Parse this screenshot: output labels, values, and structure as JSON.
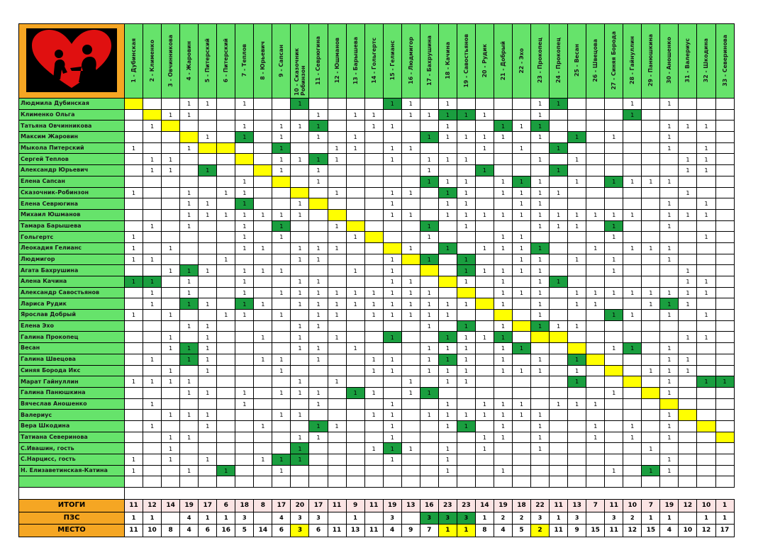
{
  "colors": {
    "green": "#66e36b",
    "dark_green": "#1a9e3f",
    "yellow": "#ffff00",
    "orange": "#f5a623",
    "pink": "#fbe4e4"
  },
  "logo_icon": "heart-silhouette-icon",
  "columns": [
    "1 - Дубинская",
    "2 - Клименко",
    "3 - Овчинникова",
    "4 - Жаровин",
    "5 - Питерский",
    "6 - Питерский",
    "7 - Теплов",
    "8 - Юрьевич",
    "9 - Сапсан",
    "10 - Сказочник Робинзон",
    "11 - Севрюгина",
    "12 - Юшманов",
    "13 - Барышева",
    "14 - Гольгертс",
    "15 - Гелианс",
    "16 - Людмигор",
    "17 - Бахрушина",
    "18 - Качина",
    "19 - Савостьянов",
    "20 - Рудик",
    "21 - Добрый",
    "22 - Эхо",
    "23 - Прокопец",
    "24 - Прокопец",
    "25 - Весан",
    "26 - Швецова",
    "27 - Синяя Борода",
    "28 - Гайнуллин",
    "29 - Панюшкина",
    "30 - Аношенко",
    "31 - Валериус",
    "32 - Шкодина",
    "33 - Северинова"
  ],
  "rows": [
    {
      "name": "Людмила Дубинская",
      "cells": "D...11..1....M......1...1.1..M...1.......1...1...1...1..............................",
      "green": [
        9,
        15,
        24
      ],
      "diag": 0
    },
    {
      "name": "Клименко Ольга"
    },
    {
      "name": "Татьяна Овчинникова"
    },
    {
      "name": "Максим Жаровин"
    },
    {
      "name": "Мыкола Питерский"
    },
    {
      "name": "Сергей Теплов"
    },
    {
      "name": "Александр Юрьевич"
    },
    {
      "name": "Елена Сапсан"
    },
    {
      "name": "Сказочник-Робинзон"
    },
    {
      "name": "Елена Севрюгина"
    },
    {
      "name": "Михаил Юшманов"
    },
    {
      "name": "Тамара Барышева"
    },
    {
      "name": "Гольгертс"
    },
    {
      "name": "Леокадия Гелианс"
    },
    {
      "name": "Людмигор"
    },
    {
      "name": "Агата Бахрушина"
    },
    {
      "name": "Алена Качина"
    },
    {
      "name": "Александр Савостьянов"
    },
    {
      "name": "Лариса Рудик"
    },
    {
      "name": "Ярослав Добрый"
    },
    {
      "name": "Елена Эхо"
    },
    {
      "name": "Галина Прокопец"
    },
    {
      "name": "Весан"
    },
    {
      "name": "Галина Швецова"
    },
    {
      "name": "Синяя Борода Икс"
    },
    {
      "name": "Марат Гайнуллин"
    },
    {
      "name": "Галина Панюшкина"
    },
    {
      "name": "Вячеслав Аношенко"
    },
    {
      "name": "Валериус"
    },
    {
      "name": "Вера Шкодина"
    },
    {
      "name": "Татиана Северинова"
    },
    {
      "name": "С.Ивашин, гость"
    },
    {
      "name": "С.Нарцисс, гость"
    },
    {
      "name": "Н. Елизаветинская-Катина"
    }
  ],
  "grid": [
    [
      "Y",
      "",
      "",
      "1",
      "1",
      "",
      "1",
      "",
      "",
      "G",
      "",
      "",
      "",
      "",
      "G",
      "1",
      "",
      "1",
      "",
      "",
      "",
      "",
      "1",
      "G",
      "",
      "",
      "",
      "1",
      "",
      "1",
      "",
      "",
      ""
    ],
    [
      "",
      "Y",
      "1",
      "1",
      "",
      "",
      "",
      "",
      "",
      "",
      "1",
      "",
      "1",
      "1",
      "",
      "1",
      "1",
      "G",
      "G",
      "1",
      "",
      "",
      "1",
      "",
      "",
      "",
      "",
      "G",
      "",
      "",
      "",
      "",
      ""
    ],
    [
      "",
      "1",
      "Y",
      "",
      "",
      "",
      "1",
      "",
      "1",
      "1",
      "G",
      "",
      "",
      "1",
      "1",
      "",
      "",
      "1",
      "",
      "",
      "G",
      "1",
      "G",
      "",
      "",
      "",
      "",
      "",
      "",
      "1",
      "1",
      "1",
      ""
    ],
    [
      "",
      "",
      "",
      "Y",
      "1",
      "",
      "G",
      "",
      "1",
      "",
      "1",
      "",
      "1",
      "",
      "",
      "",
      "G",
      "1",
      "1",
      "1",
      "1",
      "",
      "1",
      "",
      "G",
      "",
      "1",
      "",
      "",
      "1",
      "",
      "",
      ""
    ],
    [
      "1",
      "",
      "",
      "1",
      "Y",
      "Y",
      "",
      "",
      "G",
      "",
      "",
      "1",
      "1",
      "",
      "1",
      "1",
      "",
      "",
      "",
      "1",
      "",
      "1",
      "",
      "G",
      "",
      "",
      "",
      "",
      "",
      "1",
      "",
      "1",
      ""
    ],
    [
      "",
      "1",
      "1",
      "",
      "",
      "",
      "Y",
      "",
      "1",
      "1",
      "G",
      "1",
      "",
      "",
      "1",
      "",
      "1",
      "1",
      "1",
      "",
      "",
      "",
      "1",
      "",
      "1",
      "",
      "",
      "",
      "",
      "",
      "1",
      "1",
      ""
    ],
    [
      "",
      "1",
      "1",
      "",
      "G",
      "",
      "",
      "Y",
      "1",
      "",
      "1",
      "",
      "",
      "",
      "",
      "",
      "1",
      "",
      "",
      "G",
      "",
      "",
      "",
      "G",
      "",
      "",
      "",
      "",
      "",
      "",
      "1",
      "1",
      ""
    ],
    [
      "",
      "",
      "",
      "",
      "",
      "",
      "1",
      "",
      "Y",
      "",
      "1",
      "",
      "",
      "",
      "",
      "",
      "G",
      "1",
      "1",
      "",
      "1",
      "G",
      "1",
      "",
      "1",
      "",
      "G",
      "1",
      "1",
      "1",
      "",
      "",
      ""
    ],
    [
      "1",
      "",
      "",
      "1",
      "",
      "1",
      "1",
      "",
      "",
      "Y",
      "",
      "1",
      "",
      "",
      "1",
      "1",
      "",
      "G",
      "1",
      "",
      "1",
      "1",
      "1",
      "1",
      "",
      "",
      "",
      "",
      "",
      "",
      "1",
      "",
      ""
    ],
    [
      "",
      "",
      "",
      "1",
      "1",
      "",
      "G",
      "",
      "",
      "1",
      "Y",
      "",
      "",
      "",
      "1",
      "",
      "",
      "1",
      "1",
      "",
      "",
      "1",
      "1",
      "",
      "",
      "",
      "",
      "",
      "",
      "1",
      "",
      "1",
      ""
    ],
    [
      "",
      "",
      "",
      "1",
      "1",
      "1",
      "1",
      "1",
      "1",
      "1",
      "",
      "Y",
      "",
      "",
      "1",
      "1",
      "",
      "1",
      "1",
      "1",
      "1",
      "1",
      "1",
      "1",
      "1",
      "1",
      "1",
      "1",
      "",
      "1",
      "1",
      "1",
      ""
    ],
    [
      "",
      "1",
      "",
      "1",
      "",
      "",
      "1",
      "",
      "G",
      "",
      "",
      "1",
      "Y",
      "",
      "",
      "",
      "G",
      "",
      "1",
      "",
      "",
      "",
      "1",
      "1",
      "1",
      "",
      "G",
      "",
      "",
      "1",
      "",
      "",
      ""
    ],
    [
      "1",
      "",
      "",
      "",
      "",
      "",
      "1",
      "",
      "1",
      "",
      "",
      "",
      "1",
      "Y",
      "",
      "",
      "1",
      "",
      "",
      "",
      "1",
      "1",
      "",
      "",
      "",
      "",
      "1",
      "",
      "",
      "",
      "",
      "1",
      ""
    ],
    [
      "1",
      "",
      "1",
      "",
      "",
      "",
      "1",
      "1",
      "",
      "1",
      "1",
      "1",
      "",
      "",
      "Y",
      "1",
      "",
      "G",
      "",
      "1",
      "1",
      "1",
      "G",
      "",
      "",
      "1",
      "",
      "1",
      "1",
      "1",
      "",
      "",
      ""
    ],
    [
      "1",
      "1",
      "",
      "",
      "",
      "1",
      "",
      "",
      "",
      "1",
      "1",
      "",
      "",
      "",
      "1",
      "Y",
      "G",
      "",
      "G",
      "",
      "",
      "1",
      "1",
      "",
      "1",
      "",
      "1",
      "",
      "",
      "1",
      "",
      "",
      ""
    ],
    [
      "",
      "",
      "1",
      "G",
      "1",
      "",
      "1",
      "1",
      "1",
      "",
      "",
      "",
      "1",
      "",
      "1",
      "",
      "Y",
      "",
      "G",
      "1",
      "1",
      "1",
      "1",
      "",
      "",
      "",
      "1",
      "",
      "",
      "",
      "1",
      "",
      ""
    ],
    [
      "G",
      "G",
      "",
      "1",
      "",
      "",
      "1",
      "",
      "",
      "1",
      "1",
      "",
      "",
      "",
      "1",
      "1",
      "",
      "Y",
      "1",
      "",
      "1",
      "",
      "1",
      "G",
      "",
      "",
      "",
      "",
      "",
      "",
      "1",
      "1",
      ""
    ],
    [
      "",
      "1",
      "",
      "1",
      "",
      "",
      "1",
      "",
      "1",
      "1",
      "1",
      "1",
      "1",
      "1",
      "1",
      "1",
      "1",
      "",
      "Y",
      "",
      "1",
      "1",
      "1",
      "",
      "1",
      "1",
      "1",
      "1",
      "1",
      "1",
      "1",
      "1",
      ""
    ],
    [
      "",
      "1",
      "",
      "G",
      "1",
      "",
      "G",
      "1",
      "",
      "1",
      "1",
      "1",
      "1",
      "1",
      "1",
      "1",
      "1",
      "1",
      "1",
      "Y",
      "1",
      "",
      "1",
      "",
      "1",
      "1",
      "",
      "",
      "1",
      "G",
      "1",
      "",
      ""
    ],
    [
      "1",
      "",
      "1",
      "",
      "",
      "1",
      "1",
      "",
      "1",
      "",
      "1",
      "1",
      "",
      "1",
      "1",
      "1",
      "1",
      "1",
      "",
      "",
      "Y",
      "",
      "1",
      "",
      "",
      "",
      "G",
      "1",
      "",
      "1",
      "",
      "1",
      ""
    ],
    [
      "",
      "",
      "",
      "1",
      "1",
      "",
      "",
      "",
      "",
      "1",
      "1",
      "",
      "",
      "",
      "",
      "",
      "1",
      "",
      "G",
      "",
      "1",
      "Y",
      "G",
      "1",
      "1",
      "",
      "",
      "",
      "",
      "",
      "",
      "",
      ""
    ],
    [
      "",
      "",
      "1",
      "",
      "1",
      "",
      "",
      "1",
      "",
      "1",
      "",
      "1",
      "",
      "",
      "G",
      "",
      "",
      "G",
      "1",
      "1",
      "G",
      "",
      "Y",
      "Y",
      "",
      "",
      "",
      "",
      "",
      "",
      "1",
      "1",
      ""
    ],
    [
      "",
      "",
      "1",
      "G",
      "1",
      "",
      "",
      "",
      "",
      "1",
      "1",
      "",
      "1",
      "",
      "",
      "",
      "1",
      "1",
      "1",
      "",
      "1",
      "G",
      "",
      "",
      "Y",
      "",
      "1",
      "G",
      "",
      "1",
      "",
      "",
      ""
    ],
    [
      "",
      "1",
      "",
      "G",
      "1",
      "",
      "",
      "1",
      "1",
      "",
      "1",
      "",
      "",
      "1",
      "1",
      "",
      "1",
      "G",
      "1",
      "",
      "1",
      "",
      "1",
      "",
      "G",
      "Y",
      "",
      "",
      "",
      "1",
      "1",
      "",
      ""
    ],
    [
      "",
      "",
      "1",
      "",
      "1",
      "",
      "",
      "",
      "1",
      "",
      "",
      "",
      "",
      "1",
      "1",
      "",
      "1",
      "1",
      "1",
      "",
      "1",
      "1",
      "1",
      "",
      "1",
      "",
      "Y",
      "",
      "1",
      "1",
      "1",
      "",
      ""
    ],
    [
      "1",
      "1",
      "1",
      "1",
      "",
      "",
      "",
      "",
      "",
      "1",
      "",
      "1",
      "",
      "",
      "",
      "1",
      "",
      "1",
      "1",
      "",
      "",
      "",
      "",
      "",
      "G",
      "",
      "",
      "Y",
      "",
      "1",
      "",
      "G",
      "G"
    ],
    [
      "",
      "",
      "",
      "1",
      "1",
      "",
      "1",
      "",
      "1",
      "1",
      "1",
      "",
      "G",
      "1",
      "",
      "1",
      "G",
      "",
      "",
      "",
      "",
      "",
      "",
      "",
      "",
      "",
      "1",
      "",
      "Y",
      "1",
      "",
      "",
      ""
    ],
    [
      "",
      "1",
      "",
      "",
      "",
      "",
      "1",
      "",
      "",
      "",
      "1",
      "",
      "",
      "",
      "1",
      "",
      "",
      "1",
      "",
      "1",
      "1",
      "1",
      "",
      "1",
      "1",
      "1",
      "",
      "",
      "",
      "Y",
      "",
      "",
      ""
    ],
    [
      "",
      "",
      "1",
      "1",
      "1",
      "",
      "",
      "",
      "1",
      "1",
      "",
      "",
      "",
      "1",
      "1",
      "",
      "1",
      "1",
      "1",
      "1",
      "1",
      "1",
      "1",
      "",
      "",
      "",
      "",
      "",
      "",
      "1",
      "Y",
      "",
      ""
    ],
    [
      "",
      "1",
      "",
      "",
      "1",
      "",
      "",
      "1",
      "",
      "",
      "G",
      "1",
      "",
      "",
      "1",
      "",
      "",
      "1",
      "G",
      "",
      "1",
      "",
      "1",
      "",
      "",
      "1",
      "",
      "1",
      "",
      "1",
      "",
      "Y",
      ""
    ],
    [
      "",
      "",
      "1",
      "1",
      "",
      "",
      "",
      "",
      "",
      "1",
      "1",
      "",
      "",
      "",
      "1",
      "",
      "",
      "",
      "",
      "1",
      "1",
      "",
      "1",
      "",
      "",
      "1",
      "",
      "1",
      "",
      "1",
      "",
      "",
      "Y"
    ],
    [
      "",
      "",
      "1",
      "",
      "",
      "",
      "",
      "",
      "",
      "G",
      "",
      "",
      "",
      "1",
      "G",
      "1",
      "",
      "1",
      "",
      "1",
      "",
      "",
      "1",
      "",
      "",
      "",
      "",
      "",
      "1",
      "",
      "",
      "",
      ""
    ],
    [
      "1",
      "",
      "1",
      "",
      "1",
      "",
      "",
      "1",
      "G",
      "G",
      "",
      "",
      "",
      "",
      "1",
      "",
      "",
      "1",
      "",
      "",
      "",
      "",
      "",
      "",
      "",
      "",
      "",
      "",
      "",
      "1",
      "",
      "",
      ""
    ],
    [
      "1",
      "",
      "",
      "1",
      "",
      "G",
      "",
      "",
      "1",
      "",
      "",
      "",
      "",
      "",
      "",
      "",
      "",
      "1",
      "",
      "",
      "1",
      "",
      "",
      "",
      "",
      "",
      "1",
      "",
      "G",
      "1",
      "",
      "",
      ""
    ]
  ],
  "totals": {
    "labels": {
      "itogi": "ИТОГИ",
      "psc": "ПЗС",
      "mesto": "МЕСТО"
    },
    "itogi": [
      "11",
      "12",
      "14",
      "19",
      "17",
      "6",
      "18",
      "8",
      "17",
      "20",
      "17",
      "11",
      "9",
      "11",
      "19",
      "13",
      "16",
      "23",
      "23",
      "14",
      "19",
      "18",
      "22",
      "11",
      "13",
      "7",
      "11",
      "10",
      "7",
      "19",
      "12",
      "10",
      "1"
    ],
    "psc": [
      "1",
      "1",
      "",
      "4",
      "1",
      "1",
      "3",
      "",
      "4",
      "3",
      "3",
      "",
      "1",
      "",
      "3",
      "",
      "3",
      "3",
      "3",
      "1",
      "2",
      "2",
      "3",
      "1",
      "3",
      "",
      "3",
      "2",
      "1",
      "1",
      "",
      "1",
      "1"
    ],
    "mesto": [
      "11",
      "10",
      "8",
      "4",
      "6",
      "16",
      "5",
      "14",
      "6",
      "3",
      "6",
      "11",
      "13",
      "11",
      "4",
      "9",
      "7",
      "1",
      "1",
      "8",
      "4",
      "5",
      "2",
      "11",
      "9",
      "15",
      "11",
      "12",
      "15",
      "4",
      "10",
      "12",
      "17"
    ],
    "psc_green": [
      16,
      17,
      18
    ],
    "mesto_yellow": [
      9,
      17,
      18,
      22
    ]
  }
}
